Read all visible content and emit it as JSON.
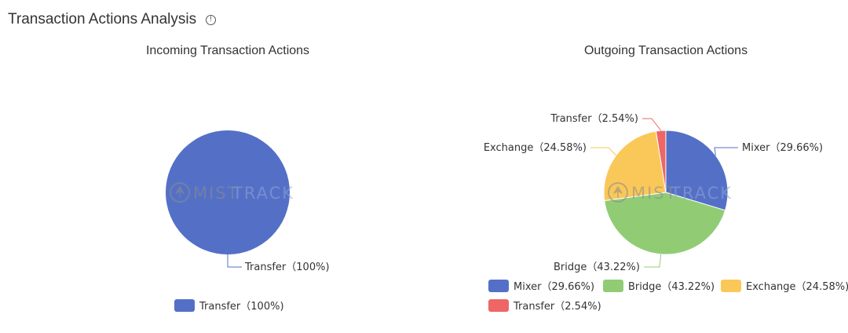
{
  "header": {
    "title": "Transaction Actions Analysis",
    "info_icon": "info-circle-icon"
  },
  "watermark": {
    "text_a": "MIST",
    "text_b": "TRACK",
    "logo_icon": "mistrack-logo-icon"
  },
  "chart_data": [
    {
      "type": "pie",
      "title": "Incoming Transaction Actions",
      "slices": [
        {
          "name": "Transfer",
          "value": 100,
          "label": "Transfer（100%)",
          "color": "#5470c6"
        }
      ],
      "legend": [
        "Transfer（100%)"
      ]
    },
    {
      "type": "pie",
      "title": "Outgoing Transaction Actions",
      "slices": [
        {
          "name": "Mixer",
          "value": 29.66,
          "label": "Mixer（29.66%)",
          "color": "#5470c6"
        },
        {
          "name": "Bridge",
          "value": 43.22,
          "label": "Bridge（43.22%)",
          "color": "#91cc75"
        },
        {
          "name": "Exchange",
          "value": 24.58,
          "label": "Exchange（24.58%)",
          "color": "#fac858"
        },
        {
          "name": "Transfer",
          "value": 2.54,
          "label": "Transfer（2.54%)",
          "color": "#ee6666"
        }
      ],
      "legend": [
        "Mixer（29.66%)",
        "Bridge（43.22%)",
        "Exchange（24.58%)",
        "Transfer（2.54%)"
      ]
    }
  ]
}
